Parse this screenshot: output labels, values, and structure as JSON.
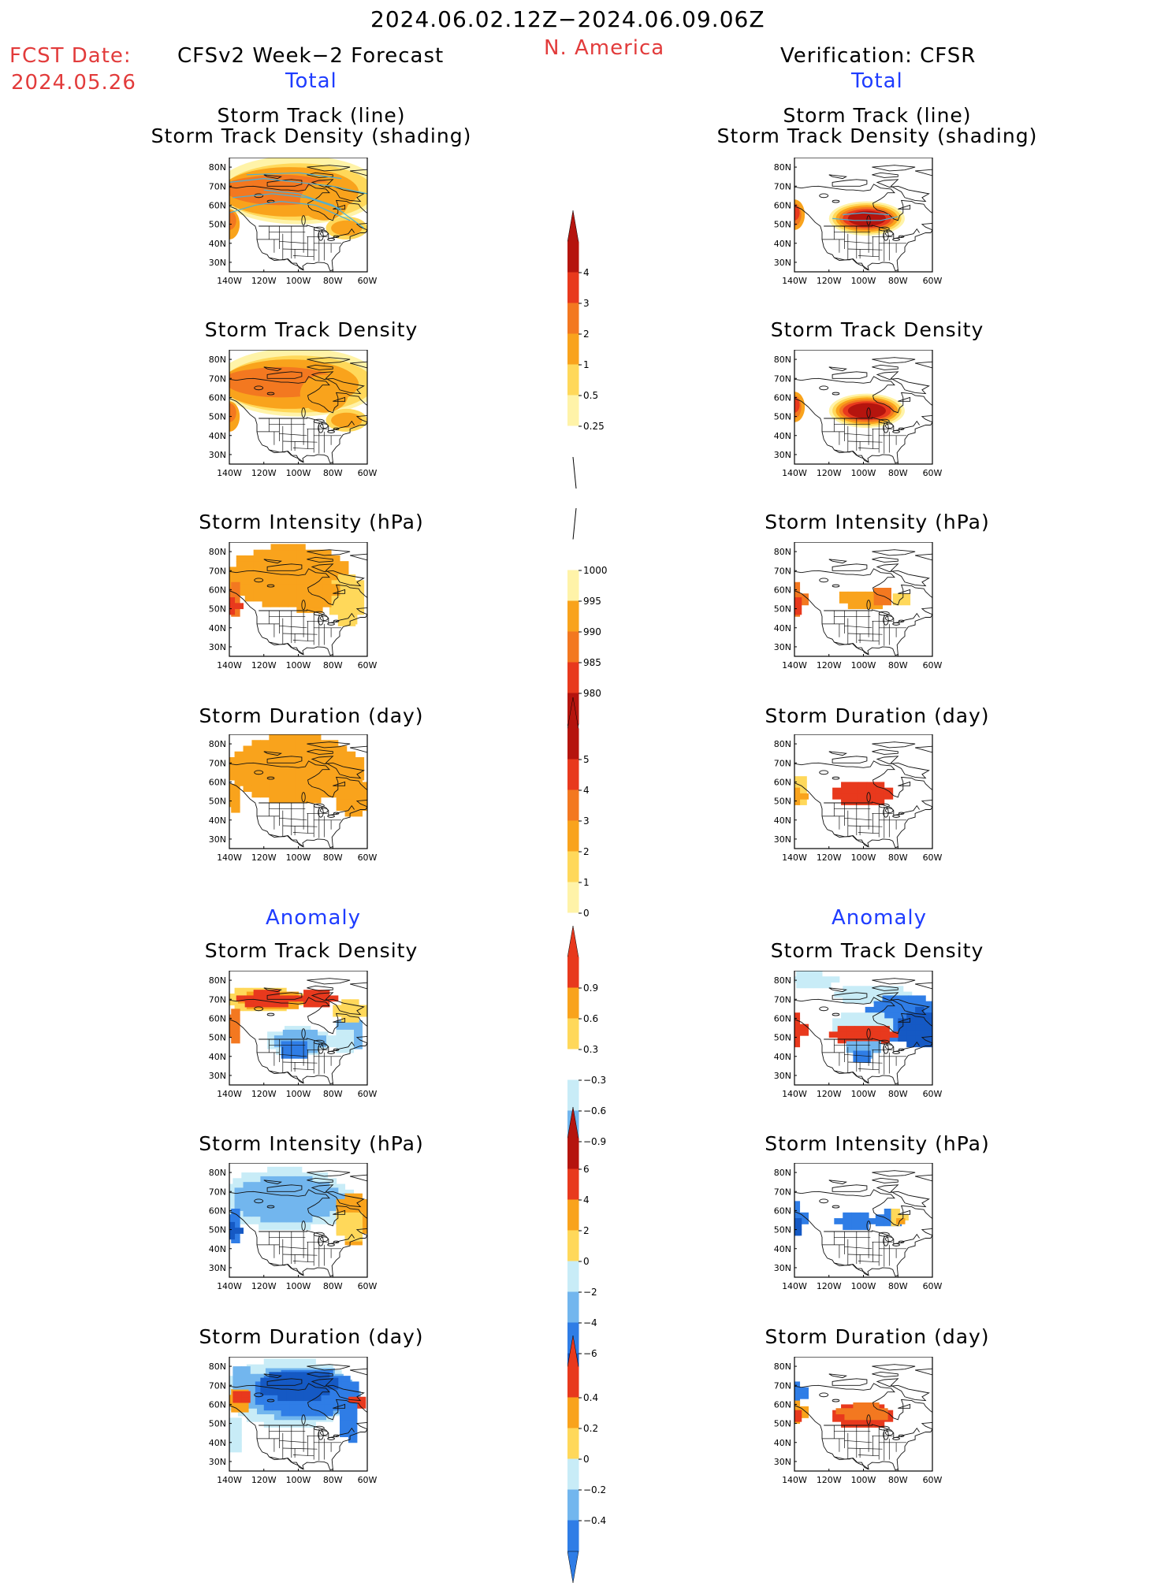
{
  "header": {
    "date_range": "2024.06.02.12Z−2024.06.09.06Z",
    "region": "N. America",
    "fcst_label": "FCST Date:",
    "fcst_date": "2024.05.26",
    "left_title": "CFSv2 Week−2 Forecast",
    "right_title": "Verification: CFSR",
    "total_left": "Total",
    "total_right": "Total",
    "anomaly_left": "Anomaly",
    "anomaly_right": "Anomaly"
  },
  "panel_titles": {
    "track_line": "Storm Track (line)",
    "track_shading": "Storm Track Density (shading)",
    "density": "Storm Track Density",
    "intensity": "Storm Intensity (hPa)",
    "duration": "Storm Duration (day)"
  },
  "axes": {
    "lat_labels": [
      "80N",
      "70N",
      "60N",
      "50N",
      "40N",
      "30N"
    ],
    "lon_labels": [
      "140W",
      "120W",
      "100W",
      "80W",
      "60W"
    ]
  },
  "colorbars": {
    "total_density": [
      "4",
      "3",
      "2",
      "1",
      "0.5",
      "0.25"
    ],
    "total_intensity": [
      "1000",
      "995",
      "990",
      "985",
      "980"
    ],
    "total_duration": [
      "5",
      "4",
      "3",
      "2",
      "1",
      "0"
    ],
    "anom_density": [
      "0.9",
      "0.6",
      "0.3",
      "−0.3",
      "−0.6",
      "−0.9"
    ],
    "anom_intensity": [
      "6",
      "4",
      "2",
      "0",
      "−2",
      "−4",
      "−6"
    ],
    "anom_duration": [
      "0.4",
      "0.2",
      "0",
      "−0.2",
      "−0.4"
    ]
  },
  "colors": {
    "header_red": "#e23b3b",
    "section_blue": "#1e3cff",
    "light_yellow": "#fff3a8",
    "yellow": "#ffd85a",
    "orange": "#f9a31c",
    "dark_orange": "#f37820",
    "red": "#e8391d",
    "dark_red": "#b5140e",
    "light_blue": "#c8ecf7",
    "mid_blue": "#72b6ee",
    "blue": "#2f7de6",
    "dark_blue": "#1559c4"
  }
}
